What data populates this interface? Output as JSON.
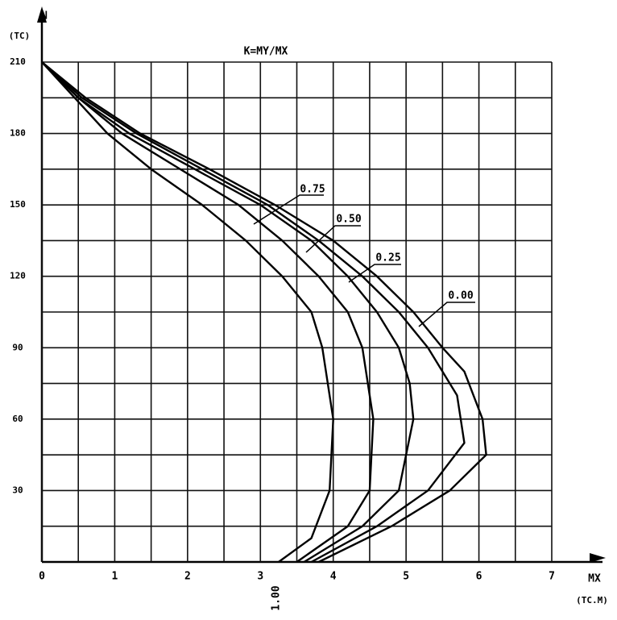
{
  "chart_data": {
    "type": "line",
    "title": "K=MY/MX",
    "y_label": "N",
    "y_unit": "(TC)",
    "x_label": "MX",
    "x_unit": "(TC.M)",
    "xlim": [
      0,
      7
    ],
    "ylim": [
      0,
      210
    ],
    "xticks": [
      0,
      1,
      2,
      3,
      4,
      5,
      6,
      7
    ],
    "yticks": [
      30,
      60,
      90,
      120,
      150,
      180,
      210
    ],
    "xgrid": [
      0.5,
      1.5,
      2.5,
      3.5,
      4.5,
      5.5,
      6.5
    ],
    "ygrid": [
      15,
      45,
      75,
      105,
      135,
      165,
      195
    ],
    "grid": true,
    "series": [
      {
        "name": "1.00",
        "color": "#000000",
        "x": [
          3.25,
          3.7,
          3.95,
          4.0,
          3.85,
          3.7,
          3.3,
          2.8,
          2.2,
          1.5,
          0.9,
          0.45,
          0
        ],
        "values": [
          0,
          10,
          30,
          60,
          90,
          105,
          120,
          135,
          150,
          165,
          180,
          195,
          210
        ]
      },
      {
        "name": "0.75",
        "color": "#000000",
        "x": [
          3.5,
          4.2,
          4.5,
          4.55,
          4.4,
          4.2,
          3.8,
          3.3,
          2.7,
          1.9,
          1.1,
          0.5,
          0
        ],
        "values": [
          0,
          15,
          30,
          60,
          90,
          105,
          120,
          135,
          150,
          165,
          180,
          195,
          210
        ]
      },
      {
        "name": "0.50",
        "color": "#000000",
        "x": [
          3.6,
          4.4,
          4.9,
          5.1,
          5.05,
          4.9,
          4.6,
          4.2,
          3.7,
          3.0,
          2.1,
          1.2,
          0.5,
          0
        ],
        "values": [
          0,
          15,
          30,
          60,
          75,
          90,
          105,
          120,
          135,
          150,
          165,
          180,
          195,
          210
        ]
      },
      {
        "name": "0.25",
        "color": "#000000",
        "x": [
          3.7,
          4.6,
          5.3,
          5.8,
          5.7,
          5.3,
          4.9,
          4.4,
          3.8,
          3.1,
          2.2,
          1.3,
          0.55,
          0
        ],
        "values": [
          0,
          15,
          30,
          50,
          70,
          90,
          105,
          120,
          135,
          150,
          165,
          180,
          195,
          210
        ]
      },
      {
        "name": "0.00",
        "color": "#000000",
        "x": [
          3.8,
          4.8,
          5.6,
          6.1,
          6.05,
          5.8,
          5.5,
          5.1,
          4.6,
          4.0,
          3.2,
          2.3,
          1.35,
          0.6,
          0
        ],
        "values": [
          0,
          15,
          30,
          45,
          60,
          80,
          90,
          105,
          120,
          135,
          150,
          165,
          180,
          195,
          210
        ]
      }
    ]
  }
}
